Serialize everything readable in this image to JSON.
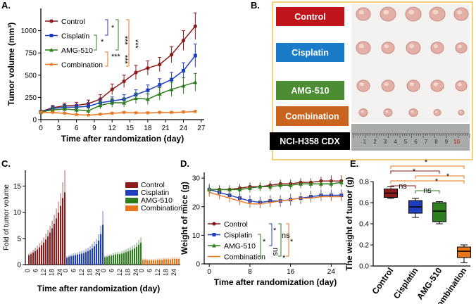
{
  "colors": {
    "control": "#8b1a1a",
    "cisplatin": "#1f3fbf",
    "amg510": "#2e7d1e",
    "combination": "#e8741c",
    "bracket_orange": "#f08030",
    "frame": "#f0c050"
  },
  "panels": {
    "a": "A.",
    "b": "B.",
    "c": "C.",
    "d": "D.",
    "e": "E."
  },
  "chart_data": [
    {
      "panel": "A",
      "type": "line",
      "title": "",
      "xlabel": "Time after randomization (day)",
      "ylabel": "Tumor volume (mm³)",
      "xlim": [
        0,
        27.5
      ],
      "ylim": [
        0,
        1250
      ],
      "xticks": [
        0,
        3,
        6,
        9,
        12,
        15,
        18,
        21,
        24,
        27
      ],
      "yticks": [
        0,
        250,
        500,
        750,
        1000
      ],
      "x": [
        0,
        2,
        4,
        6,
        8,
        10,
        12,
        14,
        16,
        18,
        20,
        22,
        24,
        26
      ],
      "series": [
        {
          "name": "Control",
          "key": "control",
          "marker": "circle",
          "values": [
            90,
            135,
            155,
            160,
            180,
            230,
            340,
            430,
            530,
            580,
            620,
            730,
            890,
            1050
          ],
          "err": [
            15,
            25,
            30,
            35,
            40,
            50,
            60,
            70,
            80,
            80,
            80,
            90,
            110,
            150
          ]
        },
        {
          "name": "Cisplatin",
          "key": "cisplatin",
          "marker": "square",
          "values": [
            85,
            125,
            140,
            140,
            150,
            190,
            210,
            230,
            280,
            330,
            390,
            450,
            550,
            720
          ],
          "err": [
            15,
            25,
            30,
            30,
            35,
            40,
            45,
            50,
            55,
            60,
            70,
            80,
            90,
            130
          ]
        },
        {
          "name": "AMG-510",
          "key": "amg510",
          "marker": "triangle",
          "values": [
            85,
            110,
            120,
            110,
            100,
            160,
            190,
            190,
            240,
            230,
            290,
            340,
            380,
            420
          ],
          "err": [
            15,
            25,
            30,
            30,
            30,
            40,
            50,
            50,
            60,
            60,
            70,
            80,
            90,
            100
          ]
        },
        {
          "name": "Combination",
          "key": "combination",
          "marker": "star",
          "values": [
            80,
            80,
            70,
            55,
            50,
            60,
            70,
            80,
            75,
            75,
            80,
            80,
            85,
            90
          ],
          "err": [
            10,
            10,
            12,
            10,
            10,
            10,
            12,
            12,
            12,
            12,
            12,
            12,
            12,
            12
          ]
        }
      ],
      "significance": [
        "*",
        "*",
        "***",
        "***",
        "***",
        "***"
      ]
    },
    {
      "panel": "C",
      "type": "bar",
      "title": "",
      "xlabel": "Time after randomization (day)",
      "ylabel": "Fold of tumor volume",
      "ylim": [
        0,
        18
      ],
      "yticks": [
        0,
        5,
        10,
        15
      ],
      "tick_labels": [
        "0",
        "6",
        "12",
        "18",
        "24"
      ],
      "series": [
        {
          "name": "Control",
          "key": "control",
          "values": [
            1.8,
            2.0,
            2.3,
            2.6,
            2.9,
            3.3,
            3.7,
            4.2,
            4.8,
            5.4,
            6.1,
            6.9,
            7.8,
            8.8,
            9.9,
            11.2,
            12.7,
            13.8
          ],
          "err": [
            0.3,
            0.4,
            0.5,
            0.6,
            0.7,
            0.8,
            0.9,
            1.0,
            1.1,
            1.2,
            1.3,
            1.5,
            1.7,
            1.9,
            2.1,
            2.4,
            3.0,
            4.2
          ]
        },
        {
          "name": "Cisplatin",
          "key": "cisplatin",
          "values": [
            1.3,
            1.5,
            1.6,
            1.7,
            1.8,
            1.9,
            2.0,
            2.1,
            2.2,
            2.4,
            2.6,
            2.8,
            3.1,
            3.5,
            3.9,
            4.6,
            5.8,
            7.6
          ],
          "err": [
            0.3,
            0.3,
            0.3,
            0.4,
            0.4,
            0.4,
            0.5,
            0.5,
            0.5,
            0.6,
            0.6,
            0.7,
            0.8,
            0.9,
            1.0,
            1.2,
            1.6,
            2.6
          ]
        },
        {
          "name": "AMG-510",
          "key": "amg510",
          "values": [
            1.4,
            1.5,
            1.6,
            1.7,
            1.8,
            1.9,
            2.0,
            2.0,
            2.1,
            2.2,
            2.4,
            2.5,
            2.7,
            2.9,
            3.1,
            3.4,
            3.8,
            4.2
          ],
          "err": [
            0.3,
            0.3,
            0.3,
            0.3,
            0.4,
            0.4,
            0.4,
            0.4,
            0.5,
            0.5,
            0.5,
            0.6,
            0.6,
            0.7,
            0.7,
            0.8,
            0.9,
            1.0
          ]
        },
        {
          "name": "Combination",
          "key": "combination",
          "values": [
            0.9,
            0.9,
            0.8,
            0.8,
            0.8,
            0.8,
            0.8,
            0.9,
            0.9,
            0.9,
            1.0,
            1.0,
            1.0,
            1.0,
            1.1,
            1.1,
            1.1,
            1.1
          ],
          "err": [
            0.3,
            0.3,
            0.3,
            0.3,
            0.3,
            0.3,
            0.3,
            0.3,
            0.3,
            0.3,
            0.3,
            0.3,
            0.3,
            0.3,
            0.3,
            0.3,
            0.3,
            0.3
          ]
        }
      ]
    },
    {
      "panel": "D",
      "type": "line",
      "title": "",
      "xlabel": "Time after randomization (day)",
      "ylabel": "Weight of mice (g)",
      "xlim": [
        -1,
        27
      ],
      "ylim": [
        0,
        32
      ],
      "xticks": [
        0,
        8,
        16,
        24
      ],
      "yticks": [
        0,
        10,
        20,
        30
      ],
      "x": [
        0,
        2,
        4,
        6,
        8,
        10,
        12,
        14,
        16,
        18,
        20,
        22,
        24,
        26
      ],
      "series": [
        {
          "name": "Control",
          "key": "control",
          "marker": "circle",
          "values": [
            26,
            26,
            26,
            26.5,
            27,
            27,
            27.5,
            28,
            28,
            28.5,
            28.5,
            29,
            29,
            29
          ],
          "err": [
            1.5,
            1.5,
            1.5,
            1.5,
            1.5,
            1.5,
            1.5,
            1.5,
            1.5,
            1.5,
            1.5,
            1.5,
            2,
            2
          ]
        },
        {
          "name": "Cisplatin",
          "key": "cisplatin",
          "marker": "square",
          "values": [
            26,
            25,
            24,
            23,
            22,
            21.5,
            22,
            22,
            22.5,
            23,
            23.5,
            24,
            24,
            24
          ],
          "err": [
            2,
            2,
            2,
            2,
            2,
            2,
            2,
            2,
            2,
            2,
            2,
            2,
            2,
            2
          ]
        },
        {
          "name": "AMG-510",
          "key": "amg510",
          "marker": "triangle",
          "values": [
            26,
            26,
            26,
            26,
            26.5,
            27,
            27,
            27.5,
            27.5,
            28,
            28,
            28,
            28,
            28.5
          ],
          "err": [
            1.5,
            1.5,
            1.5,
            1.5,
            1.5,
            1.5,
            1.5,
            1.5,
            1.5,
            1.5,
            1.5,
            1.5,
            1.5,
            1.5
          ]
        },
        {
          "name": "Combination",
          "key": "combination",
          "marker": "line",
          "values": [
            25,
            24,
            23,
            22,
            21,
            21,
            21.5,
            22,
            22.5,
            23,
            23,
            23.5,
            23.5,
            23.5
          ],
          "err": [
            1.5,
            1.5,
            1.5,
            1.5,
            1.5,
            1.5,
            1.5,
            1.5,
            1.5,
            1.5,
            1.5,
            1.5,
            1.5,
            1.5
          ]
        }
      ],
      "significance": [
        "*",
        "*",
        "*",
        "ns",
        "ns",
        "*"
      ]
    },
    {
      "panel": "E",
      "type": "box",
      "title": "",
      "ylabel": "The weight of tumor (g)",
      "ylim": [
        0,
        0.8
      ],
      "yticks": [
        0.0,
        0.2,
        0.4,
        0.6,
        0.8
      ],
      "categories": [
        "Control",
        "Cisplatin",
        "AMG-510",
        "Combination"
      ],
      "boxes": [
        {
          "key": "control",
          "min": 0.64,
          "q1": 0.65,
          "median": 0.69,
          "q3": 0.73,
          "max": 0.75
        },
        {
          "key": "cisplatin",
          "min": 0.46,
          "q1": 0.5,
          "median": 0.56,
          "q3": 0.62,
          "max": 0.64
        },
        {
          "key": "amg510",
          "min": 0.4,
          "q1": 0.42,
          "median": 0.52,
          "q3": 0.6,
          "max": 0.61
        },
        {
          "key": "combination",
          "min": 0.03,
          "q1": 0.08,
          "median": 0.14,
          "q3": 0.18,
          "max": 0.2
        }
      ],
      "significance": [
        "*",
        "*",
        "*",
        "*",
        "ns",
        "ns"
      ]
    }
  ],
  "photo": {
    "labels": [
      {
        "text": "Control",
        "bg": "#c0141a"
      },
      {
        "text": "Cisplatin",
        "bg": "#1a7cc8"
      },
      {
        "text": "AMG-510",
        "bg": "#4c8c32"
      },
      {
        "text": "Combination",
        "bg": "#c8641e"
      },
      {
        "text": "NCI-H358 CDX",
        "bg": "#000000"
      }
    ],
    "ruler_numbers": [
      "1",
      "2",
      "3",
      "4",
      "5",
      "6",
      "7",
      "8",
      "9",
      "10"
    ]
  }
}
